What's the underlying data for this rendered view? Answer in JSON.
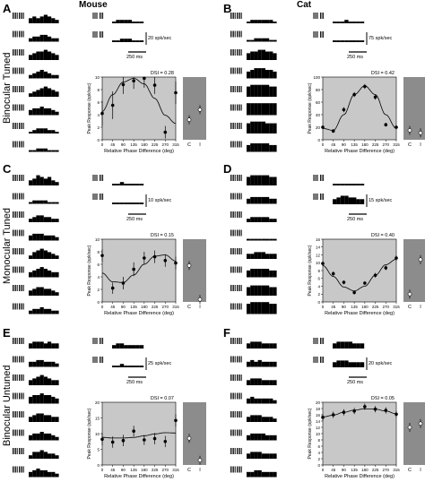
{
  "columns": [
    {
      "title": "Mouse"
    },
    {
      "title": "Cat"
    }
  ],
  "row_labels": [
    "Binocular Tuned",
    "Monocular Tuned",
    "Binocular Untuned"
  ],
  "panels": [
    {
      "letter": "A",
      "scale_rate": "20 spk/sec",
      "scale_time": "250 ms",
      "dsi": "DSI = 0.28"
    },
    {
      "letter": "B",
      "scale_rate": "75 spk/sec",
      "scale_time": "250 ms",
      "dsi": "DSI = 0.42"
    },
    {
      "letter": "C",
      "scale_rate": "10 spk/sec",
      "scale_time": "250 ms",
      "dsi": "DSI = 0.15"
    },
    {
      "letter": "D",
      "scale_rate": "15 spk/sec",
      "scale_time": "250 ms",
      "dsi": "DSI = 0.40"
    },
    {
      "letter": "E",
      "scale_rate": "25 spk/sec",
      "scale_time": "250 ms",
      "dsi": "DSI = 0.07"
    },
    {
      "letter": "F",
      "scale_rate": "20 spk/sec",
      "scale_time": "250 ms",
      "dsi": "DSI = 0.05"
    }
  ],
  "colors": {
    "plot_bg": "#c8c8c8",
    "side_bg": "#8c8c8c",
    "bars": "#000000"
  },
  "chart_data": [
    {
      "panel": "A",
      "type": "line",
      "xlabel": "Relative Phase Difference (deg)",
      "ylabel": "Peak Response (spk/sec)",
      "x": [
        0,
        45,
        90,
        135,
        180,
        225,
        270,
        315
      ],
      "xlim": [
        0,
        315
      ],
      "ylim": [
        0,
        10
      ],
      "y_ticks": [
        0,
        2,
        4,
        6,
        8,
        10
      ],
      "values": [
        4.2,
        5.5,
        8.8,
        9.4,
        9.8,
        8.7,
        1.2,
        7.5
      ],
      "errors": [
        2.0,
        2.2,
        1.5,
        1.3,
        1.5,
        1.4,
        1.0,
        1.8
      ],
      "fit": [
        4.5,
        7.2,
        9.2,
        9.8,
        8.9,
        6.6,
        3.9,
        2.6
      ],
      "side_labels": [
        "C",
        "I"
      ],
      "side_values": [
        3.2,
        4.8
      ]
    },
    {
      "panel": "B",
      "type": "line",
      "xlabel": "Relative Phase Difference (deg)",
      "ylabel": "Peak Response (spk/sec)",
      "x": [
        0,
        45,
        90,
        135,
        180,
        225,
        270,
        315
      ],
      "xlim": [
        0,
        315
      ],
      "ylim": [
        0,
        100
      ],
      "y_ticks": [
        0,
        20,
        40,
        60,
        80,
        100
      ],
      "values": [
        20,
        14,
        48,
        72,
        85,
        68,
        24,
        20
      ],
      "errors": [
        3,
        3,
        4,
        4,
        4,
        4,
        3,
        3
      ],
      "fit": [
        18,
        15,
        40,
        72,
        86,
        72,
        40,
        18
      ],
      "side_labels": [
        "C",
        "I"
      ],
      "side_values": [
        15,
        11
      ]
    },
    {
      "panel": "C",
      "type": "line",
      "xlabel": "Relative Phase Difference (deg)",
      "ylabel": "Peak Response (spk/sec)",
      "x": [
        0,
        45,
        90,
        135,
        180,
        225,
        270,
        315
      ],
      "xlim": [
        0,
        315
      ],
      "ylim": [
        0,
        10
      ],
      "y_ticks": [
        0,
        2,
        4,
        6,
        8,
        10
      ],
      "values": [
        7.4,
        2.2,
        3.0,
        5.2,
        7.0,
        7.2,
        6.6,
        6.2
      ],
      "errors": [
        1.0,
        0.9,
        1.0,
        1.1,
        1.0,
        1.0,
        1.0,
        1.0
      ],
      "fit": [
        4.6,
        3.2,
        3.1,
        4.3,
        6.0,
        7.3,
        7.5,
        6.5
      ],
      "side_labels": [
        "C",
        "I"
      ],
      "side_values": [
        5.8,
        0.4
      ]
    },
    {
      "panel": "D",
      "type": "line",
      "xlabel": "Relative Phase Difference (deg)",
      "ylabel": "Peak Response (spk/sec)",
      "x": [
        0,
        45,
        90,
        135,
        180,
        225,
        270,
        315
      ],
      "xlim": [
        0,
        315
      ],
      "ylim": [
        0,
        16
      ],
      "y_ticks": [
        0,
        2,
        4,
        6,
        8,
        10,
        12,
        14,
        16
      ],
      "values": [
        9.8,
        7.2,
        5.0,
        2.4,
        4.8,
        6.8,
        8.7,
        11.2
      ],
      "errors": [
        0.6,
        0.6,
        0.5,
        0.5,
        0.5,
        0.6,
        0.6,
        0.7
      ],
      "fit": [
        9.3,
        6.5,
        3.8,
        2.8,
        4.0,
        6.8,
        9.5,
        10.9
      ],
      "side_labels": [
        "C",
        "I"
      ],
      "side_values": [
        2.0,
        10.8
      ]
    },
    {
      "panel": "E",
      "type": "line",
      "xlabel": "Relative Phase Difference (deg)",
      "ylabel": "Peak Response (spk/sec)",
      "x": [
        0,
        45,
        90,
        135,
        180,
        225,
        270,
        315
      ],
      "xlim": [
        0,
        315
      ],
      "ylim": [
        0,
        20
      ],
      "y_ticks": [
        0,
        5,
        10,
        15,
        20
      ],
      "values": [
        8.2,
        7.3,
        7.8,
        10.8,
        8.0,
        8.4,
        7.5,
        14.2
      ],
      "errors": [
        2.0,
        1.8,
        1.8,
        1.7,
        1.6,
        1.8,
        1.8,
        2.0
      ],
      "fit": [
        8.8,
        8.6,
        8.6,
        8.8,
        9.3,
        9.9,
        10.3,
        10.2
      ],
      "side_labels": [
        "C",
        "I"
      ],
      "side_values": [
        8.5,
        1.5
      ]
    },
    {
      "panel": "F",
      "type": "line",
      "xlabel": "Relative Phase Difference (deg)",
      "ylabel": "Peak Response (spk/sec)",
      "x": [
        0,
        45,
        90,
        135,
        180,
        225,
        270,
        315
      ],
      "xlim": [
        0,
        315
      ],
      "ylim": [
        0,
        20
      ],
      "y_ticks": [
        0,
        2,
        4,
        6,
        8,
        10,
        12,
        14,
        16,
        18,
        20
      ],
      "values": [
        15.2,
        16.0,
        16.8,
        17.2,
        18.6,
        17.8,
        17.4,
        16.2
      ],
      "errors": [
        1.0,
        1.0,
        1.0,
        1.0,
        1.0,
        1.0,
        1.0,
        1.0
      ],
      "fit": [
        15.3,
        15.9,
        16.8,
        17.5,
        17.9,
        17.8,
        17.2,
        16.3
      ],
      "side_labels": [
        "C",
        "I"
      ],
      "side_values": [
        12.0,
        13.2
      ]
    }
  ],
  "psth": {
    "A": [
      [
        3,
        4,
        3,
        4,
        5,
        4,
        3,
        2
      ],
      [
        2,
        3,
        3,
        4,
        4,
        3,
        2,
        2
      ],
      [
        3,
        4,
        5,
        5,
        6,
        5,
        4,
        3
      ],
      [
        2,
        3,
        4,
        5,
        4,
        3,
        2,
        2
      ],
      [
        2,
        3,
        4,
        5,
        6,
        5,
        4,
        3
      ],
      [
        3,
        4,
        4,
        5,
        4,
        4,
        3,
        2
      ],
      [
        1,
        2,
        3,
        3,
        3,
        2,
        2,
        1
      ],
      [
        1,
        1,
        2,
        2,
        2,
        1,
        1,
        1
      ]
    ],
    "B": [
      [
        1,
        2,
        2,
        2,
        2,
        2,
        2,
        1
      ],
      [
        1,
        1,
        2,
        2,
        2,
        2,
        1,
        1
      ],
      [
        4,
        5,
        5,
        6,
        6,
        5,
        5,
        4
      ],
      [
        4,
        5,
        6,
        6,
        6,
        5,
        5,
        4
      ],
      [
        6,
        7,
        7,
        7,
        7,
        7,
        6,
        6
      ],
      [
        7,
        7,
        7,
        7,
        7,
        7,
        7,
        7
      ],
      [
        6,
        7,
        7,
        7,
        7,
        6,
        6,
        6
      ],
      [
        4,
        5,
        5,
        5,
        5,
        5,
        4,
        4
      ]
    ],
    "C": [
      [
        3,
        4,
        6,
        5,
        4,
        5,
        3,
        2
      ],
      [
        1,
        2,
        2,
        2,
        2,
        1,
        1,
        1
      ],
      [
        2,
        3,
        4,
        4,
        3,
        3,
        2,
        2
      ],
      [
        3,
        4,
        4,
        4,
        3,
        3,
        3,
        2
      ],
      [
        2,
        4,
        5,
        6,
        5,
        4,
        3,
        2
      ],
      [
        3,
        4,
        5,
        6,
        5,
        4,
        3,
        3
      ],
      [
        3,
        4,
        5,
        5,
        4,
        4,
        3,
        2
      ],
      [
        2,
        3,
        3,
        4,
        3,
        3,
        2,
        2
      ]
    ],
    "D": [
      [
        5,
        6,
        6,
        6,
        6,
        6,
        5,
        5
      ],
      [
        3,
        4,
        4,
        4,
        4,
        4,
        3,
        3
      ],
      [
        2,
        3,
        3,
        3,
        3,
        3,
        2,
        2
      ],
      [
        1,
        1,
        1,
        1,
        1,
        1,
        1,
        1
      ],
      [
        3,
        3,
        4,
        4,
        4,
        3,
        3,
        3
      ],
      [
        4,
        5,
        5,
        5,
        5,
        5,
        4,
        4
      ],
      [
        5,
        6,
        6,
        6,
        6,
        6,
        5,
        5
      ],
      [
        6,
        7,
        7,
        7,
        7,
        7,
        6,
        6
      ]
    ],
    "E": [
      [
        3,
        4,
        4,
        4,
        3,
        4,
        3,
        3
      ],
      [
        3,
        3,
        4,
        4,
        3,
        3,
        3,
        2
      ],
      [
        3,
        4,
        5,
        6,
        5,
        4,
        3,
        3
      ],
      [
        4,
        5,
        5,
        6,
        5,
        5,
        4,
        3
      ],
      [
        3,
        4,
        5,
        5,
        4,
        4,
        3,
        3
      ],
      [
        3,
        4,
        4,
        5,
        4,
        4,
        3,
        2
      ],
      [
        2,
        4,
        4,
        5,
        4,
        3,
        3,
        2
      ],
      [
        3,
        4,
        5,
        4,
        4,
        3,
        3,
        2
      ]
    ],
    "F": [
      [
        3,
        4,
        4,
        4,
        3,
        3,
        3,
        3
      ],
      [
        3,
        4,
        3,
        4,
        3,
        3,
        3,
        3
      ],
      [
        3,
        4,
        4,
        4,
        3,
        3,
        3,
        3
      ],
      [
        3,
        4,
        3,
        3,
        3,
        3,
        3,
        2
      ],
      [
        3,
        4,
        4,
        4,
        3,
        3,
        3,
        2
      ],
      [
        3,
        4,
        4,
        4,
        4,
        3,
        3,
        3
      ],
      [
        3,
        4,
        4,
        4,
        3,
        3,
        3,
        3
      ],
      [
        3,
        3,
        4,
        4,
        3,
        3,
        3,
        3
      ]
    ]
  },
  "psth_mono": {
    "A": [
      [
        1,
        2,
        2,
        2,
        2,
        1,
        1,
        1
      ],
      [
        1,
        1,
        2,
        2,
        2,
        1,
        1,
        1
      ]
    ],
    "B": [
      [
        1,
        1,
        1,
        2,
        1,
        1,
        1,
        1
      ],
      [
        1,
        1,
        1,
        1,
        1,
        1,
        1,
        1
      ]
    ],
    "C": [
      [
        1,
        1,
        2,
        1,
        1,
        1,
        1,
        1
      ],
      [
        1,
        1,
        1,
        1,
        1,
        1,
        1,
        1
      ]
    ],
    "D": [
      [
        1,
        1,
        1,
        1,
        1,
        1,
        1,
        1
      ],
      [
        3,
        4,
        5,
        5,
        4,
        4,
        3,
        3
      ]
    ],
    "E": [
      [
        2,
        3,
        3,
        2,
        2,
        2,
        2,
        2
      ],
      [
        1,
        1,
        2,
        1,
        1,
        1,
        1,
        1
      ]
    ],
    "F": [
      [
        3,
        4,
        4,
        4,
        4,
        3,
        3,
        3
      ],
      [
        3,
        4,
        4,
        4,
        3,
        3,
        3,
        3
      ]
    ]
  }
}
